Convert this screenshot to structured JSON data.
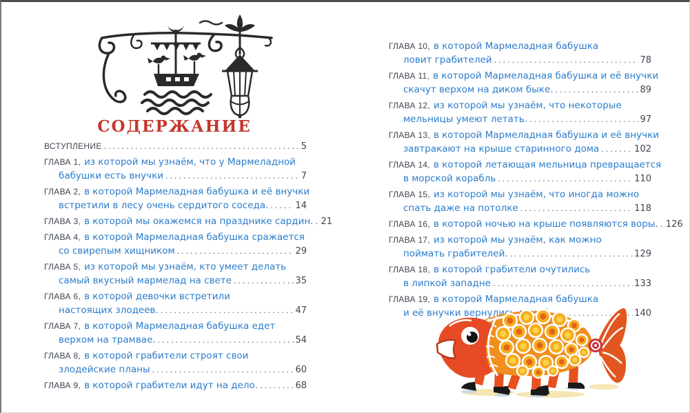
{
  "colors": {
    "title_red": "#c5362d",
    "entry_blue": "#2b7ccb",
    "entry_dark": "#3e4550"
  },
  "toc": {
    "title": "СОДЕРЖАНИЕ"
  },
  "illustrations": {
    "lantern": "wrought-iron-bracket-with-ship-and-lantern-ink-drawing",
    "fish": "orange-walking-fish-with-legs"
  },
  "left_page": {
    "entries": [
      {
        "label": "ВСТУПЛЕНИЕ",
        "line1": null,
        "line2": null,
        "page": "5"
      },
      {
        "label": "ГЛАВА 1,",
        "line1": "из которой мы узнаём, что у Мармеладной",
        "line2": "бабушки есть внучки",
        "page": "7"
      },
      {
        "label": "ГЛАВА 2,",
        "line1": "в которой Мармеладная бабушка и её внучки",
        "line2": "встретили в лесу очень сердитого соседа.",
        "page": "14"
      },
      {
        "label": "ГЛАВА 3,",
        "line1": "в которой мы окажемся на празднике сардин.",
        "line2": null,
        "page": "21"
      },
      {
        "label": "ГЛАВА 4,",
        "line1": "в которой Мармеладная бабушка сражается",
        "line2": "со свирепым хищником",
        "page": "29"
      },
      {
        "label": "ГЛАВА 5,",
        "line1": "из которой мы узнаём, кто умеет делать",
        "line2": "самый вкусный мармелад на свете",
        "page": "35"
      },
      {
        "label": "ГЛАВА 6,",
        "line1": "в которой девочки встретили",
        "line2": "настоящих злодеев.",
        "page": "47"
      },
      {
        "label": "ГЛАВА 7,",
        "line1": "в которой Мармеладная бабушка едет",
        "line2": "верхом на трамвае.",
        "page": "54"
      },
      {
        "label": "ГЛАВА 8,",
        "line1": "в которой грабители строят свои",
        "line2": "злодейские планы",
        "page": "60"
      },
      {
        "label": "ГЛАВА 9,",
        "line1": "в которой грабители идут на дело.",
        "line2": null,
        "page": "68"
      }
    ]
  },
  "right_page": {
    "entries": [
      {
        "label": "ГЛАВА 10,",
        "line1": "в которой Мармеладная бабушка",
        "line2": "ловит грабителей",
        "page": "78"
      },
      {
        "label": "ГЛАВА 11,",
        "line1": "в которой Мармеладная бабушка и её внучки",
        "line2": "скачут верхом на диком быке.",
        "page": "89"
      },
      {
        "label": "ГЛАВА 12,",
        "line1": "из которой мы узнаём, что некоторые",
        "line2": "мельницы умеют летать.",
        "page": "97"
      },
      {
        "label": "ГЛАВА 13,",
        "line1": "в которой Мармеладная бабушка и её внучки",
        "line2": "завтракают на крыше старинного дома",
        "page": "102"
      },
      {
        "label": "ГЛАВА 14,",
        "line1": "в которой летающая мельница превращается",
        "line2": "в морской корабль",
        "page": "110"
      },
      {
        "label": "ГЛАВА 15,",
        "line1": "из которой мы узнаём, что иногда можно",
        "line2": "спать даже на потолке",
        "page": "118"
      },
      {
        "label": "ГЛАВА 16,",
        "line1": "в которой ночью на крыше появляются воры.",
        "line2": null,
        "page": "126"
      },
      {
        "label": "ГЛАВА 17,",
        "line1": "из которой мы узнаём, как можно",
        "line2": "поймать грабителей.",
        "page": "129"
      },
      {
        "label": "ГЛАВА 18,",
        "line1": "в которой грабители очутились",
        "line2": "в липкой западне",
        "page": "133"
      },
      {
        "label": "ГЛАВА 19,",
        "line1": "в которой Мармеладная бабушка",
        "line2": "и её внучки вернулись домой",
        "page": "140"
      }
    ]
  }
}
